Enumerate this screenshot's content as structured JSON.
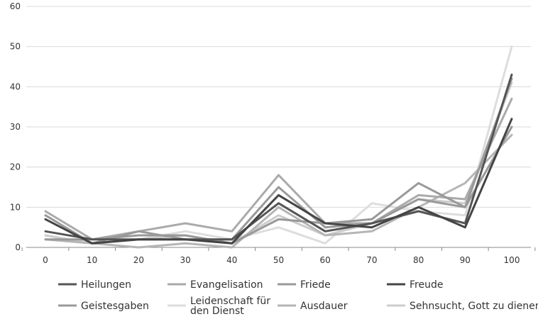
{
  "chart_data": {
    "type": "line",
    "title": "",
    "xlabel": "",
    "ylabel": "",
    "x": [
      0,
      10,
      20,
      30,
      40,
      50,
      60,
      70,
      80,
      90,
      100
    ],
    "ylim": [
      0,
      60
    ],
    "yticks": [
      0,
      10,
      20,
      30,
      40,
      50,
      60
    ],
    "grid": true,
    "legend_position": "bottom",
    "series": [
      {
        "name": "Heilungen",
        "color": "#555555",
        "width": 3,
        "values": [
          4,
          2,
          2,
          2,
          2,
          11,
          4,
          6,
          9,
          6,
          43
        ]
      },
      {
        "name": "Evangelisation",
        "color": "#aaaaaa",
        "width": 3,
        "values": [
          9,
          2,
          4,
          6,
          4,
          18,
          6,
          6,
          13,
          12,
          37
        ]
      },
      {
        "name": "Friede",
        "color": "#999999",
        "width": 3,
        "values": [
          8,
          1,
          4,
          2,
          2,
          15,
          5,
          6,
          12,
          10,
          30
        ]
      },
      {
        "name": "Freude",
        "color": "#444444",
        "width": 3,
        "values": [
          7,
          1,
          2,
          2,
          1,
          13,
          6,
          5,
          10,
          5,
          32
        ]
      },
      {
        "name": "Geistesgaben",
        "color": "#999999",
        "width": 3,
        "values": [
          2,
          2,
          3,
          3,
          1,
          7,
          6,
          7,
          16,
          10,
          42
        ]
      },
      {
        "name": "Leidenschaft für den Dienst",
        "color": "#dddddd",
        "width": 3,
        "values": [
          3,
          1,
          2,
          4,
          2,
          5,
          1,
          11,
          9,
          8,
          50
        ]
      },
      {
        "name": "Ausdauer",
        "color": "#b5b5b5",
        "width": 3,
        "values": [
          2,
          1,
          0,
          1,
          0,
          10,
          3,
          4,
          10,
          16,
          28
        ]
      },
      {
        "name": "Sehnsucht, Gott zu dienen",
        "color": "#cccccc",
        "width": 3,
        "values": [
          3,
          1,
          2,
          3,
          1,
          8,
          3,
          6,
          12,
          11,
          41
        ]
      }
    ]
  },
  "legend": {
    "items": [
      {
        "label": "Heilungen",
        "color": "#555555"
      },
      {
        "label": "Evangelisation",
        "color": "#aaaaaa"
      },
      {
        "label": "Friede",
        "color": "#999999"
      },
      {
        "label": "Freude",
        "color": "#444444"
      },
      {
        "label": "Geistesgaben",
        "color": "#999999"
      },
      {
        "label": "Leidenschaft für\nden Dienst",
        "color": "#dddddd"
      },
      {
        "label": "Ausdauer",
        "color": "#b5b5b5"
      },
      {
        "label": "Sehnsucht, Gott zu dienen",
        "color": "#cccccc"
      }
    ]
  }
}
